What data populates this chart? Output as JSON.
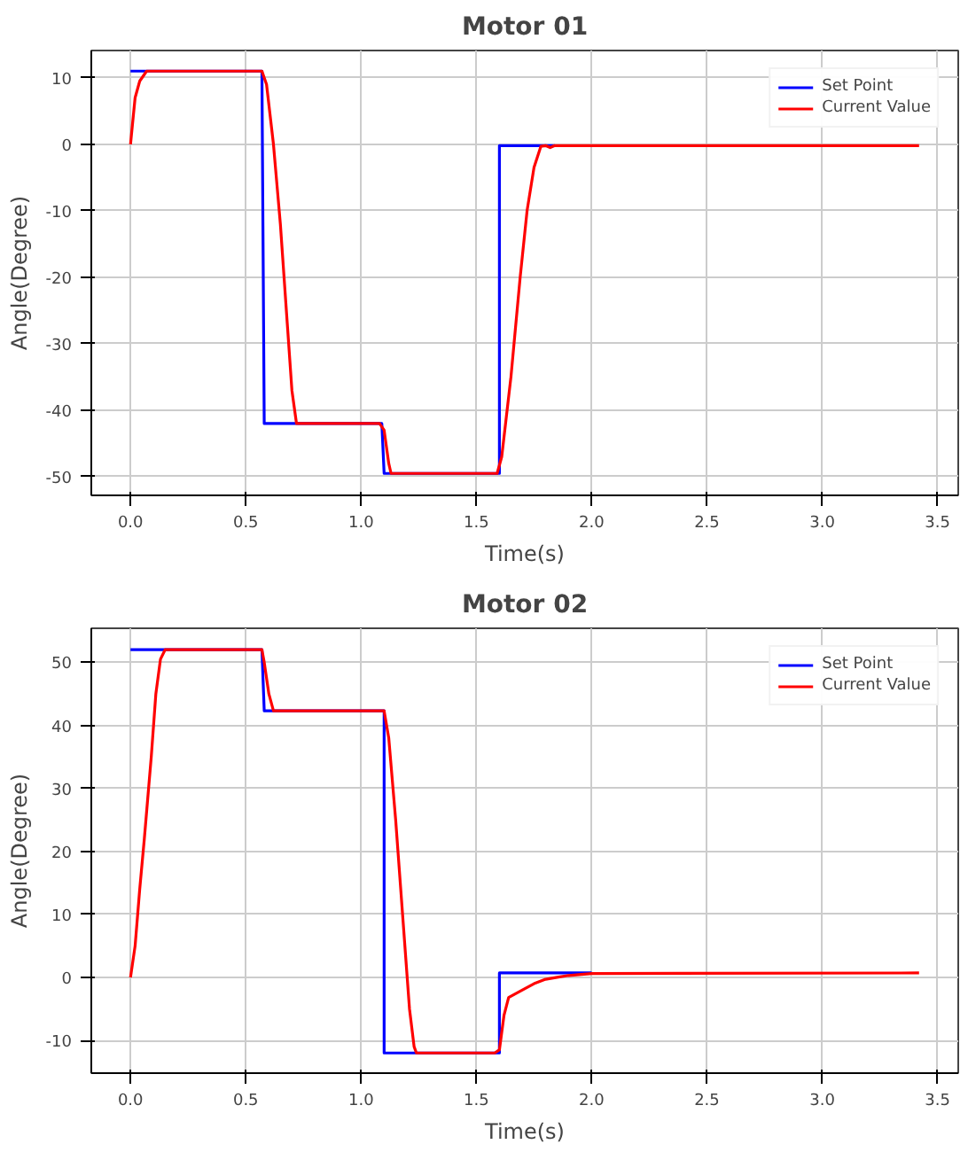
{
  "chart_data": [
    {
      "type": "line",
      "title": "Motor 01",
      "xlabel": "Time(s)",
      "ylabel": "Angle(Degree)",
      "xlim": [
        -0.17,
        3.59
      ],
      "ylim": [
        -52.8,
        14.1
      ],
      "xticks": [
        {
          "value": 0,
          "label": "0.0"
        },
        0.5,
        {
          "value": 1,
          "label": "1.0"
        },
        1.5,
        {
          "value": 2,
          "label": "2.0"
        },
        2.5,
        {
          "value": 3,
          "label": "3.0"
        },
        3.5
      ],
      "yticks": [
        -50,
        -40,
        -30,
        -20,
        -10,
        0,
        10
      ],
      "grid": true,
      "legend": "top right",
      "series": [
        {
          "name": "Set Point",
          "color": "#0000ff",
          "x": [
            0,
            0.57,
            0.58,
            1.09,
            1.1,
            1.6,
            1.6,
            1.84
          ],
          "values": [
            11,
            11,
            -42,
            -42,
            -49.5,
            -49.5,
            -0.2,
            -0.2
          ]
        },
        {
          "name": "Current Value",
          "color": "#ff0000",
          "x": [
            0,
            0.02,
            0.04,
            0.07,
            0.57,
            0.59,
            0.62,
            0.65,
            0.68,
            0.7,
            0.72,
            0.73,
            1.08,
            1.1,
            1.12,
            1.13,
            1.59,
            1.61,
            1.65,
            1.69,
            1.72,
            1.75,
            1.78,
            1.8,
            1.82,
            1.84,
            3.42
          ],
          "values": [
            0,
            7,
            9.5,
            11,
            11,
            9,
            0,
            -12,
            -27,
            -37,
            -42,
            -42,
            -42,
            -43,
            -48,
            -49.5,
            -49.5,
            -47,
            -35,
            -20,
            -10,
            -3.5,
            -0.3,
            -0.2,
            -0.5,
            -0.2,
            -0.2
          ]
        }
      ]
    },
    {
      "type": "line",
      "title": "Motor 02",
      "xlabel": "Time(s)",
      "ylabel": "Angle(Degree)",
      "xlim": [
        -0.17,
        3.59
      ],
      "ylim": [
        -15.2,
        55.4
      ],
      "xticks": [
        {
          "value": 0,
          "label": "0.0"
        },
        0.5,
        {
          "value": 1,
          "label": "1.0"
        },
        1.5,
        {
          "value": 2,
          "label": "2.0"
        },
        2.5,
        {
          "value": 3,
          "label": "3.0"
        },
        3.5
      ],
      "yticks": [
        -10,
        0,
        10,
        20,
        30,
        40,
        50
      ],
      "grid": true,
      "legend": "top right",
      "series": [
        {
          "name": "Set Point",
          "color": "#0000ff",
          "x": [
            0,
            0.57,
            0.58,
            1.1,
            1.1,
            1.6,
            1.6,
            2.0
          ],
          "values": [
            52,
            52,
            42.3,
            42.3,
            -12,
            -12,
            0.7,
            0.7
          ]
        },
        {
          "name": "Current Value",
          "color": "#ff0000",
          "x": [
            0,
            0.02,
            0.04,
            0.06,
            0.09,
            0.11,
            0.13,
            0.15,
            0.57,
            0.58,
            0.6,
            0.62,
            1.1,
            1.12,
            1.15,
            1.18,
            1.21,
            1.23,
            1.24,
            1.58,
            1.6,
            1.62,
            1.64,
            1.7,
            1.75,
            1.8,
            1.85,
            1.9,
            2.0,
            3.42
          ],
          "values": [
            0,
            5,
            14,
            22,
            35,
            45,
            50.5,
            52,
            52,
            50,
            45,
            42.3,
            42.3,
            38,
            25,
            10,
            -5,
            -11,
            -12,
            -12,
            -11.5,
            -6,
            -3.2,
            -2,
            -1,
            -0.3,
            0,
            0.3,
            0.6,
            0.7
          ]
        }
      ]
    }
  ]
}
